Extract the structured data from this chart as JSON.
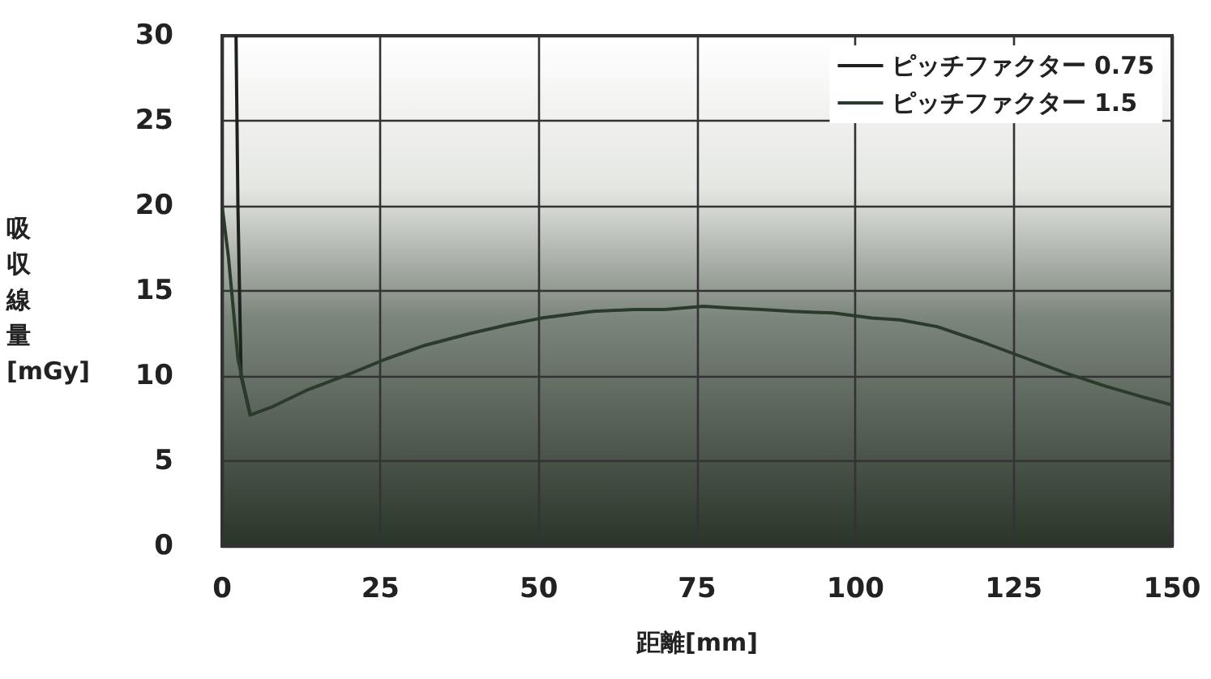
{
  "chart_data": {
    "type": "line",
    "xlabel": "距離[mm]",
    "ylabel": "吸収線量[mGy]",
    "xlim": [
      0,
      150
    ],
    "xticks": [
      0,
      25,
      50,
      75,
      100,
      125,
      150
    ],
    "ylim": [
      0,
      30
    ],
    "yticks": [
      0,
      5,
      10,
      15,
      20,
      25,
      30
    ],
    "grid": true,
    "legend": "top right",
    "marker": "none",
    "line_style": "solid",
    "series": [
      {
        "name": "ピッチファクター 0.75",
        "color": "#1e221e",
        "x": [
          2.2,
          2.5,
          3,
          4.4
        ],
        "values": [
          30,
          20,
          10,
          7.8
        ]
      },
      {
        "name": "ピッチファクター 1.5",
        "color": "#2b3b2b",
        "x": [
          0,
          1,
          2.5,
          4.4,
          8,
          13.6,
          20,
          25.9,
          32,
          39.2,
          45,
          50.4,
          58.6,
          65,
          69.9,
          76,
          80,
          85.2,
          90,
          96.5,
          102.6,
          107,
          112.9,
          120,
          127.2,
          133,
          139.5,
          145,
          150
        ],
        "values": [
          20,
          17,
          11,
          7.7,
          8.2,
          9.2,
          10.1,
          11.0,
          11.8,
          12.5,
          13.0,
          13.4,
          13.8,
          13.9,
          13.9,
          14.1,
          14.0,
          13.9,
          13.8,
          13.7,
          13.4,
          13.3,
          12.9,
          12.0,
          11.0,
          10.2,
          9.4,
          8.8,
          8.3
        ]
      }
    ]
  }
}
